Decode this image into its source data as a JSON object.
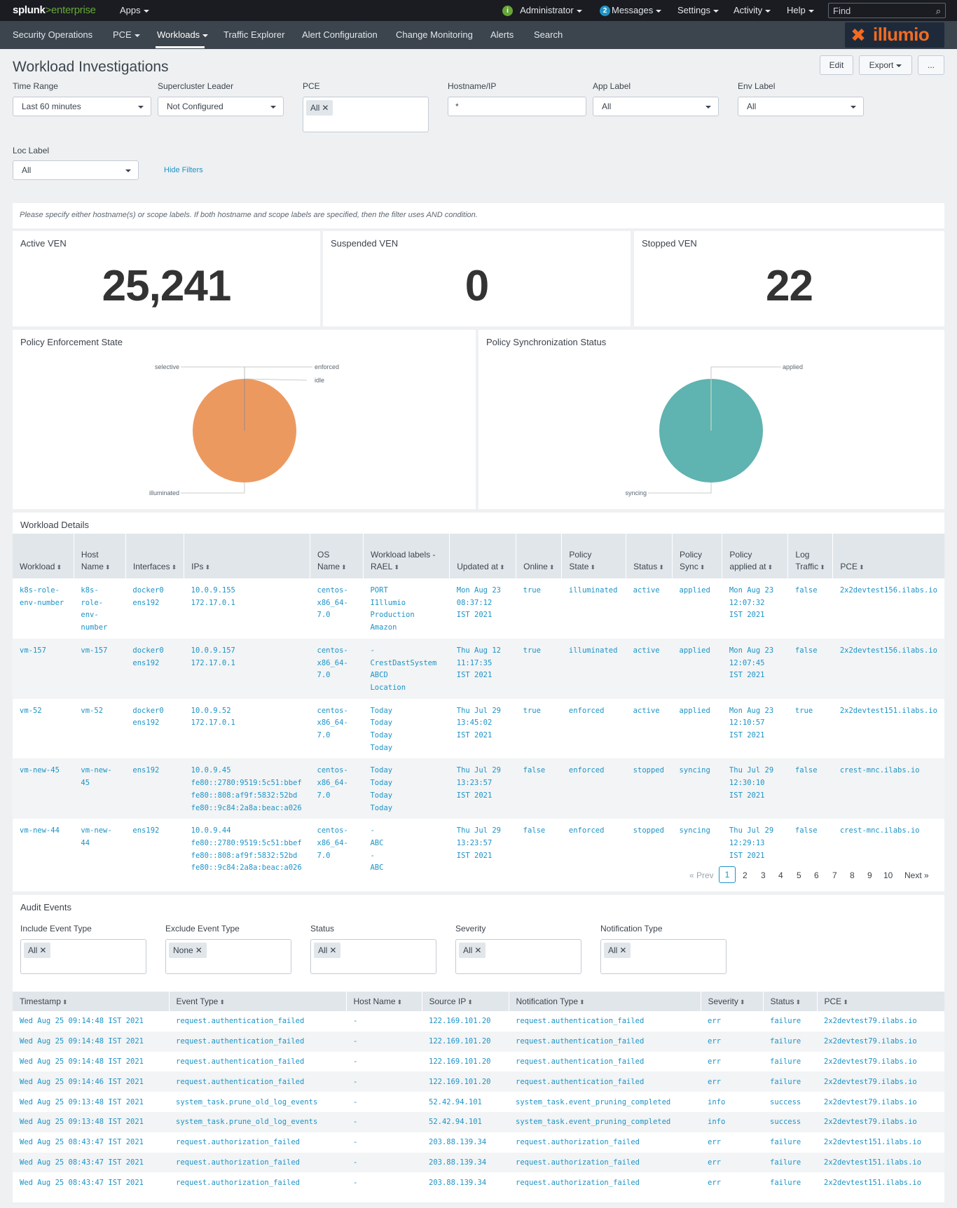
{
  "topbar": {
    "brand_splunk": "splunk",
    "brand_gt": ">",
    "brand_enterprise": "enterprise",
    "apps": "Apps",
    "admin": "Administrator",
    "messages_count": "2",
    "messages": "Messages",
    "settings": "Settings",
    "activity": "Activity",
    "help": "Help",
    "find_placeholder": "Find"
  },
  "appnav": {
    "items": [
      "Security Operations",
      "PCE",
      "Workloads",
      "Traffic Explorer",
      "Alert Configuration",
      "Change Monitoring",
      "Alerts",
      "Search"
    ],
    "brand": "illumio"
  },
  "page": {
    "title": "Workload Investigations",
    "edit": "Edit",
    "export": "Export",
    "more": "..."
  },
  "filters": {
    "time_range": {
      "label": "Time Range",
      "value": "Last 60 minutes"
    },
    "supercluster": {
      "label": "Supercluster Leader",
      "value": "Not Configured"
    },
    "pce": {
      "label": "PCE",
      "chip": "All"
    },
    "hostname": {
      "label": "Hostname/IP",
      "value": "*"
    },
    "app_label": {
      "label": "App Label",
      "value": "All"
    },
    "env_label": {
      "label": "Env Label",
      "value": "All"
    },
    "loc_label": {
      "label": "Loc Label",
      "value": "All"
    },
    "hide_filters": "Hide Filters"
  },
  "notice": "Please specify either hostname(s) or scope labels. If both hostname and scope labels are specified, then the filter uses AND condition.",
  "stats": {
    "active": {
      "title": "Active VEN",
      "value": "25,241"
    },
    "suspended": {
      "title": "Suspended VEN",
      "value": "0"
    },
    "stopped": {
      "title": "Stopped VEN",
      "value": "22"
    }
  },
  "chart_data": [
    {
      "type": "pie",
      "title": "Policy Enforcement State",
      "labels": [
        "selective",
        "enforced",
        "idle",
        "illuminated"
      ],
      "values": [
        0,
        3,
        0,
        2
      ],
      "colors": {
        "illuminated": "#ec9960"
      }
    },
    {
      "type": "pie",
      "title": "Policy Synchronization Status",
      "labels": [
        "applied",
        "syncing"
      ],
      "values": [
        3,
        2
      ],
      "colors": {
        "applied": "#5fb3b0",
        "syncing": "#5fb3b0"
      }
    }
  ],
  "workloads": {
    "title": "Workload Details",
    "headers": [
      "Workload",
      "Host\nName",
      "Interfaces",
      "IPs",
      "OS Name",
      "Workload labels -\nRAEL",
      "Updated at",
      "Online",
      "Policy State",
      "Status",
      "Policy\nSync",
      "Policy\napplied at",
      "Log\nTraffic",
      "PCE"
    ],
    "rows": [
      [
        "k8s-role-\nenv-number",
        "k8s-\nrole-\nenv-\nnumber",
        "docker0\nens192",
        "10.0.9.155\n172.17.0.1",
        "centos-\nx86_64-\n7.0",
        "PORT\nI1llumio\nProduction\nAmazon",
        "Mon Aug 23\n08:37:12\nIST 2021",
        "true",
        "illuminated",
        "active",
        "applied",
        "Mon Aug 23\n12:07:32\nIST 2021",
        "false",
        "2x2devtest156.ilabs.io"
      ],
      [
        "vm-157",
        "vm-157",
        "docker0\nens192",
        "10.0.9.157\n172.17.0.1",
        "centos-\nx86_64-\n7.0",
        "-\nCrestDastSystem\nABCD\nLocation",
        "Thu Aug 12\n11:17:35\nIST 2021",
        "true",
        "illuminated",
        "active",
        "applied",
        "Mon Aug 23\n12:07:45\nIST 2021",
        "false",
        "2x2devtest156.ilabs.io"
      ],
      [
        "vm-52",
        "vm-52",
        "docker0\nens192",
        "10.0.9.52\n172.17.0.1",
        "centos-\nx86_64-\n7.0",
        "Today\nToday\nToday\nToday",
        "Thu Jul 29\n13:45:02\nIST 2021",
        "true",
        "enforced",
        "active",
        "applied",
        "Mon Aug 23\n12:10:57\nIST 2021",
        "true",
        "2x2devtest151.ilabs.io"
      ],
      [
        "vm-new-45",
        "vm-new-\n45",
        "ens192",
        "10.0.9.45\nfe80::2780:9519:5c51:bbef\nfe80::808:af9f:5832:52bd\nfe80::9c84:2a8a:beac:a026",
        "centos-\nx86_64-\n7.0",
        "Today\nToday\nToday\nToday",
        "Thu Jul 29\n13:23:57\nIST 2021",
        "false",
        "enforced",
        "stopped",
        "syncing",
        "Thu Jul 29\n12:30:10\nIST 2021",
        "false",
        "crest-mnc.ilabs.io"
      ],
      [
        "vm-new-44",
        "vm-new-\n44",
        "ens192",
        "10.0.9.44\nfe80::2780:9519:5c51:bbef\nfe80::808:af9f:5832:52bd\nfe80::9c84:2a8a:beac:a026",
        "centos-\nx86_64-\n7.0",
        "-\nABC\n-\nABC",
        "Thu Jul 29\n13:23:57\nIST 2021",
        "false",
        "enforced",
        "stopped",
        "syncing",
        "Thu Jul 29\n12:29:13\nIST 2021",
        "false",
        "crest-mnc.ilabs.io"
      ]
    ],
    "pager": {
      "prev": "« Prev",
      "pages": [
        "1",
        "2",
        "3",
        "4",
        "5",
        "6",
        "7",
        "8",
        "9",
        "10"
      ],
      "next": "Next »",
      "current": "1"
    }
  },
  "audit": {
    "title": "Audit Events",
    "filters": {
      "include": {
        "label": "Include Event Type",
        "chip": "All"
      },
      "exclude": {
        "label": "Exclude Event Type",
        "chip": "None"
      },
      "status": {
        "label": "Status",
        "chip": "All"
      },
      "severity": {
        "label": "Severity",
        "chip": "All"
      },
      "notification": {
        "label": "Notification Type",
        "chip": "All"
      }
    },
    "headers": [
      "Timestamp",
      "Event Type",
      "Host Name",
      "Source IP",
      "Notification Type",
      "Severity",
      "Status",
      "PCE"
    ],
    "rows": [
      [
        "Wed Aug 25 09:14:48 IST 2021",
        "request.authentication_failed",
        "-",
        "122.169.101.20",
        "request.authentication_failed",
        "err",
        "failure",
        "2x2devtest79.ilabs.io"
      ],
      [
        "Wed Aug 25 09:14:48 IST 2021",
        "request.authentication_failed",
        "-",
        "122.169.101.20",
        "request.authentication_failed",
        "err",
        "failure",
        "2x2devtest79.ilabs.io"
      ],
      [
        "Wed Aug 25 09:14:48 IST 2021",
        "request.authentication_failed",
        "-",
        "122.169.101.20",
        "request.authentication_failed",
        "err",
        "failure",
        "2x2devtest79.ilabs.io"
      ],
      [
        "Wed Aug 25 09:14:46 IST 2021",
        "request.authentication_failed",
        "-",
        "122.169.101.20",
        "request.authentication_failed",
        "err",
        "failure",
        "2x2devtest79.ilabs.io"
      ],
      [
        "Wed Aug 25 09:13:48 IST 2021",
        "system_task.prune_old_log_events",
        "-",
        "52.42.94.101",
        "system_task.event_pruning_completed",
        "info",
        "success",
        "2x2devtest79.ilabs.io"
      ],
      [
        "Wed Aug 25 09:13:48 IST 2021",
        "system_task.prune_old_log_events",
        "-",
        "52.42.94.101",
        "system_task.event_pruning_completed",
        "info",
        "success",
        "2x2devtest79.ilabs.io"
      ],
      [
        "Wed Aug 25 08:43:47 IST 2021",
        "request.authorization_failed",
        "-",
        "203.88.139.34",
        "request.authorization_failed",
        "err",
        "failure",
        "2x2devtest151.ilabs.io"
      ],
      [
        "Wed Aug 25 08:43:47 IST 2021",
        "request.authorization_failed",
        "-",
        "203.88.139.34",
        "request.authorization_failed",
        "err",
        "failure",
        "2x2devtest151.ilabs.io"
      ],
      [
        "Wed Aug 25 08:43:47 IST 2021",
        "request.authorization_failed",
        "-",
        "203.88.139.34",
        "request.authorization_failed",
        "err",
        "failure",
        "2x2devtest151.ilabs.io"
      ]
    ]
  },
  "colors": {
    "topbar": "#1a1c21",
    "appbar": "#3c444d",
    "link": "#1e93c6",
    "accent_green": "#65a637",
    "illumio_orange": "#f26b21"
  }
}
